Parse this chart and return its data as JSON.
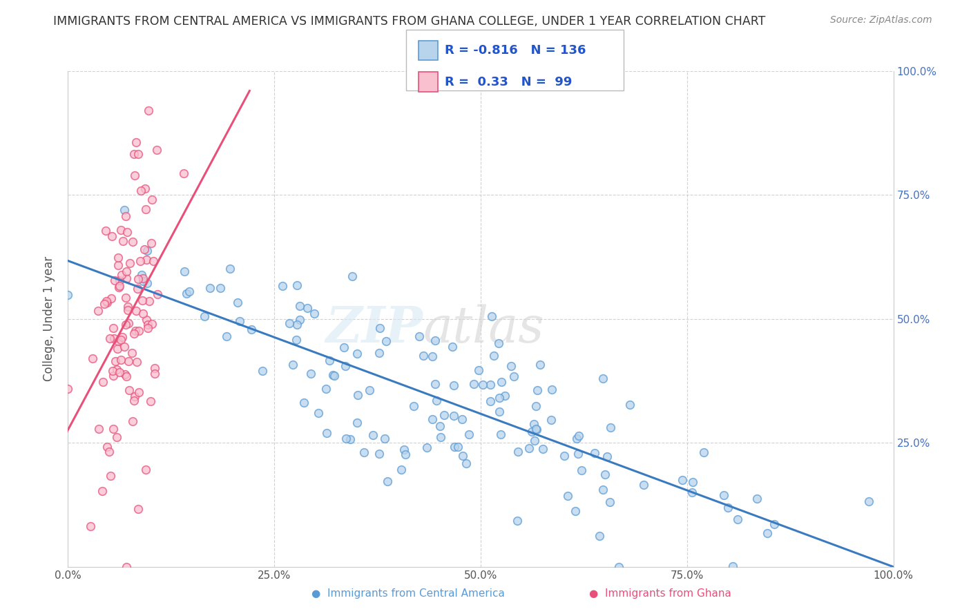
{
  "title": "IMMIGRANTS FROM CENTRAL AMERICA VS IMMIGRANTS FROM GHANA COLLEGE, UNDER 1 YEAR CORRELATION CHART",
  "source": "Source: ZipAtlas.com",
  "ylabel": "College, Under 1 year",
  "xlim": [
    0.0,
    1.0
  ],
  "ylim": [
    0.0,
    1.0
  ],
  "series1_fill_color": "#b8d4ec",
  "series1_edge_color": "#5b9bd5",
  "series1_line_color": "#3a7abf",
  "series2_fill_color": "#f9c0cf",
  "series2_edge_color": "#e8507a",
  "series2_line_color": "#e8507a",
  "R1": -0.816,
  "N1": 136,
  "R2": 0.33,
  "N2": 99,
  "background_color": "#ffffff",
  "grid_color": "#cccccc",
  "legend_label1": "Immigrants from Central America",
  "legend_label2": "Immigrants from Ghana",
  "title_color": "#333333",
  "axis_label_color": "#555555",
  "right_tick_color": "#4472c4",
  "legend_text_color": "#2255cc"
}
